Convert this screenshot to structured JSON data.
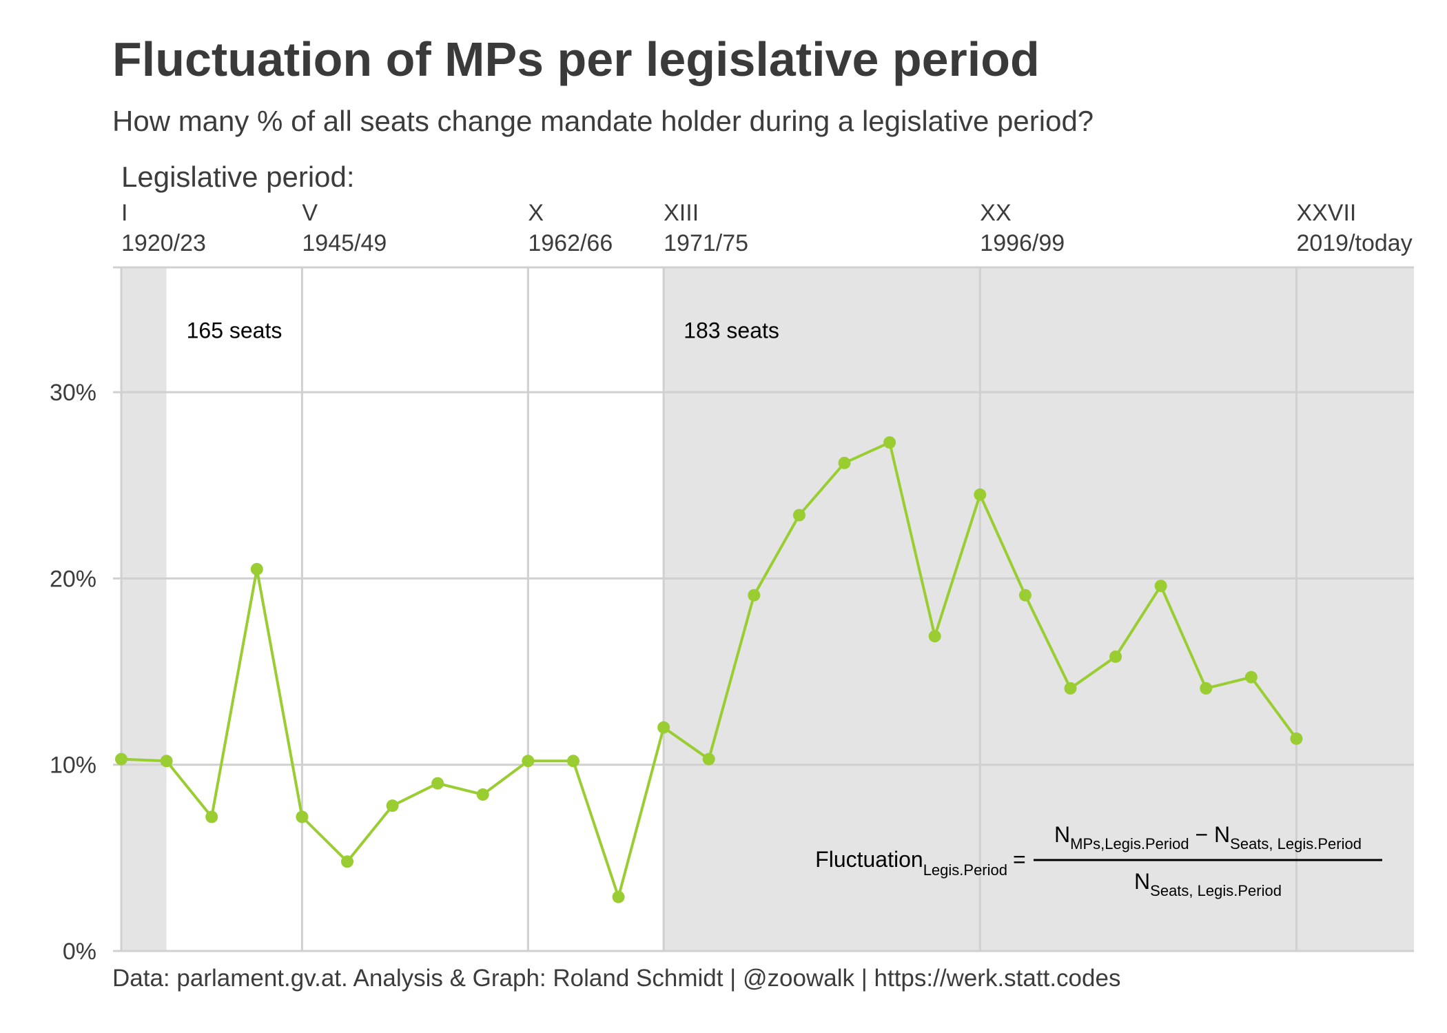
{
  "title": "Fluctuation of MPs per legislative period",
  "subtitle": "How many % of all seats change mandate holder during a legislative period?",
  "caption": "Data: parlament.gv.at. Analysis & Graph: Roland Schmidt | @zoowalk | https://werk.statt.codes",
  "colors": {
    "line": "#9ACD32",
    "shade": "#e4e4e4",
    "grid": "#d0d0d0",
    "text": "#3c3c3c"
  },
  "chart_data": {
    "type": "line",
    "title": "Fluctuation of MPs per legislative period",
    "subtitle": "How many % of all seats change mandate holder during a legislative period?",
    "top_axis_title": "Legislative period:",
    "top_ticks": [
      {
        "index": 1,
        "roman": "I",
        "years": "1920/23"
      },
      {
        "index": 5,
        "roman": "V",
        "years": "1945/49"
      },
      {
        "index": 10,
        "roman": "X",
        "years": "1962/66"
      },
      {
        "index": 13,
        "roman": "XIII",
        "years": "1971/75"
      },
      {
        "index": 20,
        "roman": "XX",
        "years": "1996/99"
      },
      {
        "index": 27,
        "roman": "XXVII",
        "years": "2019/today"
      }
    ],
    "x": [
      1,
      2,
      3,
      4,
      5,
      6,
      7,
      8,
      9,
      10,
      11,
      12,
      13,
      14,
      15,
      16,
      17,
      18,
      19,
      20,
      21,
      22,
      23,
      24,
      25,
      26,
      27
    ],
    "series": [
      {
        "values": [
          10.3,
          10.2,
          7.2,
          20.5,
          7.2,
          4.8,
          7.8,
          9.0,
          8.4,
          10.2,
          10.2,
          2.9,
          12.0,
          10.3,
          19.1,
          23.4,
          26.2,
          27.3,
          16.9,
          24.5,
          19.1,
          14.1,
          15.8,
          19.6,
          14.1,
          14.7,
          11.4
        ]
      }
    ],
    "y_ticks": [
      "0%",
      "10%",
      "20%",
      "30%"
    ],
    "y_tick_values": [
      0,
      10,
      20,
      30
    ],
    "xlim": [
      1,
      29.6
    ],
    "ylim": [
      0,
      36.7
    ],
    "shaded_regions": [
      {
        "from": 1,
        "to": 2
      },
      {
        "from": 13,
        "to": 29.6
      }
    ],
    "annotations": [
      {
        "text": "165 seats",
        "x": 3.5,
        "y": 32.9
      },
      {
        "text": "183 seats",
        "x": 14.5,
        "y": 32.9
      }
    ],
    "formula": {
      "lhs": "Fluctuation",
      "lhs_sub": "Legis.Period",
      "eq": "=",
      "num_a": "N",
      "num_a_sub": "MPs,Legis.Period",
      "minus": "−",
      "num_b": "N",
      "num_b_sub": "Seats, Legis.Period",
      "den": "N",
      "den_sub": "Seats, Legis.Period"
    },
    "grid": true
  }
}
